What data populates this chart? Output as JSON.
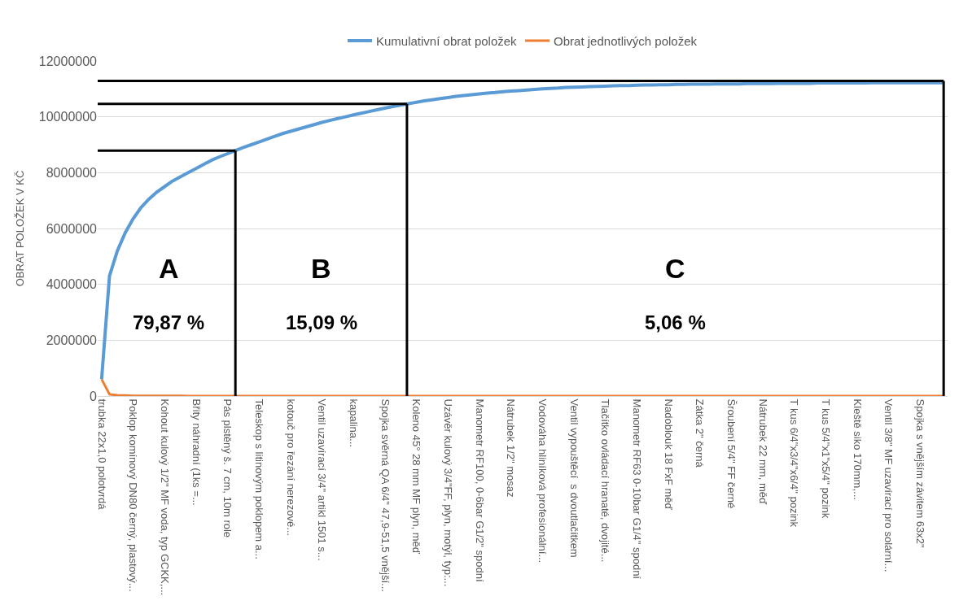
{
  "chart_data": {
    "type": "line",
    "ylabel": "OBRAT POLOŽEK V KČ",
    "categories": [
      "trubka 22x1,0 polotvrdá",
      null,
      null,
      null,
      "Poklop komínový DN80 černý, plastový...",
      null,
      null,
      null,
      "Kohout kulový 1/2\" MF voda, typ GCKK,...",
      null,
      null,
      null,
      "Břity náhradní (1ks =...",
      null,
      null,
      null,
      "Pás plstěný š. 7 cm, 10m role",
      null,
      null,
      null,
      "Teleskop s litinovým poklopem a...",
      null,
      null,
      null,
      "kotouč pro řezání nerezové...",
      null,
      null,
      null,
      "Ventil uzavírací 3/4\" artikl 1501 s...",
      null,
      null,
      null,
      "kapalina...",
      null,
      null,
      null,
      "Spojka svěrná QA 6/4\" 47,9-51,5 vnější...",
      null,
      null,
      null,
      "Koleno 45° 28 mm MF plyn, měď",
      null,
      null,
      null,
      "Uzávěr kulový 3/4\"FF, plyn, motýl, typ:...",
      null,
      null,
      null,
      "Manometr RF100, 0-6bar G1/2\" spodní",
      null,
      null,
      null,
      "Nátrubek 1/2\" mosaz",
      null,
      null,
      null,
      "Vodováha hliníková profesionální...",
      null,
      null,
      null,
      "Ventil vypouštěcí  s dvoutlačítkem",
      null,
      null,
      null,
      "Tlačítko ovládací hranaté, dvojité...",
      null,
      null,
      null,
      "Manometr RF63 0-10bar G1/4\" spodní",
      null,
      null,
      null,
      "Nadoblouk 18 FxF měď",
      null,
      null,
      null,
      "Zátka 2\" černá",
      null,
      null,
      null,
      "Šroubení 5/4\" FF černé",
      null,
      null,
      null,
      "Nátrubek 22 mm, měď",
      null,
      null,
      null,
      "T kus 6/4\"x3/4\"x6/4\" pozink",
      null,
      null,
      null,
      "T kus 5/4\"x1\"x5/4\" pozink",
      null,
      null,
      null,
      "Kleště siko 170mm,...",
      null,
      null,
      null,
      "Ventil 3/8\" MF uzavírací pro solární...",
      null,
      null,
      null,
      "Spojka s vnějším závitem 63x2\"",
      null,
      null,
      null
    ],
    "series": [
      {
        "name": "Kumulativní obrat položek",
        "color": "#5b9bd5",
        "values": [
          600000,
          4300000,
          5200000,
          5850000,
          6350000,
          6750000,
          7050000,
          7300000,
          7500000,
          7700000,
          7850000,
          8000000,
          8150000,
          8300000,
          8450000,
          8570000,
          8680000,
          8790000,
          8900000,
          9000000,
          9100000,
          9200000,
          9300000,
          9400000,
          9480000,
          9560000,
          9640000,
          9720000,
          9800000,
          9870000,
          9940000,
          10000000,
          10070000,
          10130000,
          10190000,
          10250000,
          10310000,
          10370000,
          10420000,
          10470000,
          10520000,
          10570000,
          10610000,
          10650000,
          10690000,
          10730000,
          10760000,
          10790000,
          10820000,
          10850000,
          10870000,
          10900000,
          10920000,
          10940000,
          10960000,
          10980000,
          11000000,
          11020000,
          11030000,
          11050000,
          11060000,
          11070000,
          11080000,
          11090000,
          11100000,
          11110000,
          11120000,
          11120000,
          11130000,
          11140000,
          11140000,
          11150000,
          11150000,
          11160000,
          11160000,
          11170000,
          11170000,
          11170000,
          11180000,
          11180000,
          11180000,
          11180000,
          11190000,
          11190000,
          11190000,
          11190000,
          11200000,
          11200000,
          11200000,
          11200000,
          11200000,
          11210000,
          11210000,
          11210000,
          11210000,
          11210000,
          11210000,
          11210000,
          11220000,
          11220000,
          11220000,
          11220000,
          11220000,
          11220000,
          11220000,
          11220000,
          11220000,
          11220000
        ]
      },
      {
        "name": "Obrat jednotlivých položek",
        "color": "#ed7d31",
        "values": [
          600000,
          60000,
          30000,
          20000,
          10000,
          10000,
          10000,
          10000,
          10000,
          10000,
          10000,
          0,
          0,
          0,
          0,
          0,
          0,
          0,
          0,
          0,
          0,
          0,
          0,
          0,
          0,
          0,
          0,
          0,
          0,
          0,
          0,
          0,
          0,
          0,
          0,
          0,
          0,
          0,
          0,
          0,
          0,
          0,
          0,
          0,
          0,
          0,
          0,
          0,
          0,
          0,
          0,
          0,
          0,
          0,
          0,
          0,
          0,
          0,
          0,
          0,
          0,
          0,
          0,
          0,
          0,
          0,
          0,
          0,
          0,
          0,
          0,
          0,
          0,
          0,
          0,
          0,
          0,
          0,
          0,
          0,
          0,
          0,
          0,
          0,
          0,
          0,
          0,
          0,
          0,
          0,
          0,
          0,
          0,
          0,
          0,
          0,
          0,
          0,
          0,
          0,
          0,
          0,
          0,
          0,
          0,
          0,
          0,
          0
        ]
      }
    ],
    "ylim": [
      0,
      12000000
    ],
    "yticks": [
      0,
      2000000,
      4000000,
      6000000,
      8000000,
      10000000,
      12000000
    ],
    "grid": "y",
    "legend": "top",
    "ref_lines": [
      {
        "axis": "y",
        "value": 8790000,
        "color": "#000000"
      },
      {
        "axis": "y",
        "value": 10460000,
        "color": "#000000"
      },
      {
        "axis": "y",
        "value": 11290000,
        "color": "#000000"
      }
    ],
    "annotations": [
      "A",
      "79,87 %",
      "B",
      "15,09 %",
      "C",
      "5,06 %"
    ]
  }
}
